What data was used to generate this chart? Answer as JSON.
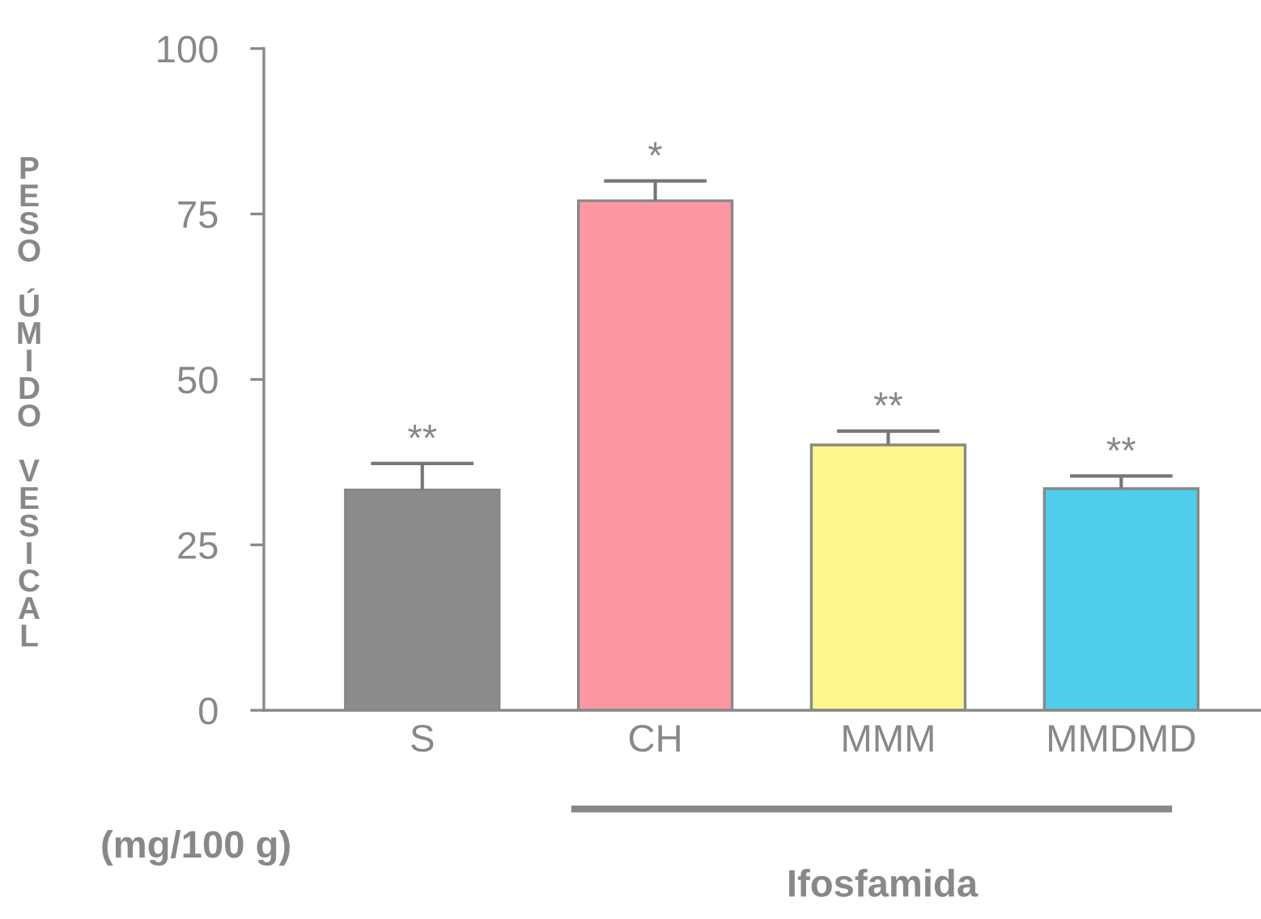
{
  "chart_data": {
    "type": "bar",
    "ylabel": "PESO ÚMIDO VESICAL",
    "categories": [
      "S",
      "CH",
      "MMM",
      "MMDMD"
    ],
    "values": [
      33.3,
      77.0,
      40.1,
      33.5
    ],
    "errors": [
      [
        33.3,
        37.3
      ],
      [
        77.0,
        80.0
      ],
      [
        40.1,
        42.2
      ],
      [
        33.5,
        35.4
      ]
    ],
    "colors": [
      "#8c8c8c",
      "#fc97a3",
      "#fdf68f",
      "#50cdea"
    ],
    "ylim": [
      0,
      100
    ],
    "yticks": [
      0,
      25,
      50,
      75,
      100
    ],
    "grid": false,
    "annotations": [
      "**",
      "*",
      "**",
      "**",
      "(mg/100 g)",
      "Ifosfamida"
    ]
  }
}
